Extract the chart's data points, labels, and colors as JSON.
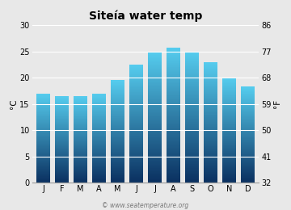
{
  "title": "Siteía water temp",
  "months": [
    "J",
    "F",
    "M",
    "A",
    "M",
    "J",
    "J",
    "A",
    "S",
    "O",
    "N",
    "D"
  ],
  "values": [
    17.0,
    16.5,
    16.5,
    17.0,
    19.5,
    22.5,
    24.9,
    25.7,
    25.0,
    23.0,
    20.0,
    18.3
  ],
  "ylim_c": [
    0,
    30
  ],
  "yticks_c": [
    0,
    5,
    10,
    15,
    20,
    25,
    30
  ],
  "yticks_f": [
    32,
    41,
    50,
    59,
    68,
    77,
    86
  ],
  "ylabel_left": "°C",
  "ylabel_right": "°F",
  "bar_color_top": "#55CCEE",
  "bar_color_bottom": "#0A3060",
  "background_color": "#e8e8e8",
  "plot_bg_color": "#e8e8e8",
  "grid_color": "#ffffff",
  "watermark": "© www.seatemperature.org",
  "title_fontsize": 10,
  "tick_fontsize": 7,
  "label_fontsize": 7.5
}
